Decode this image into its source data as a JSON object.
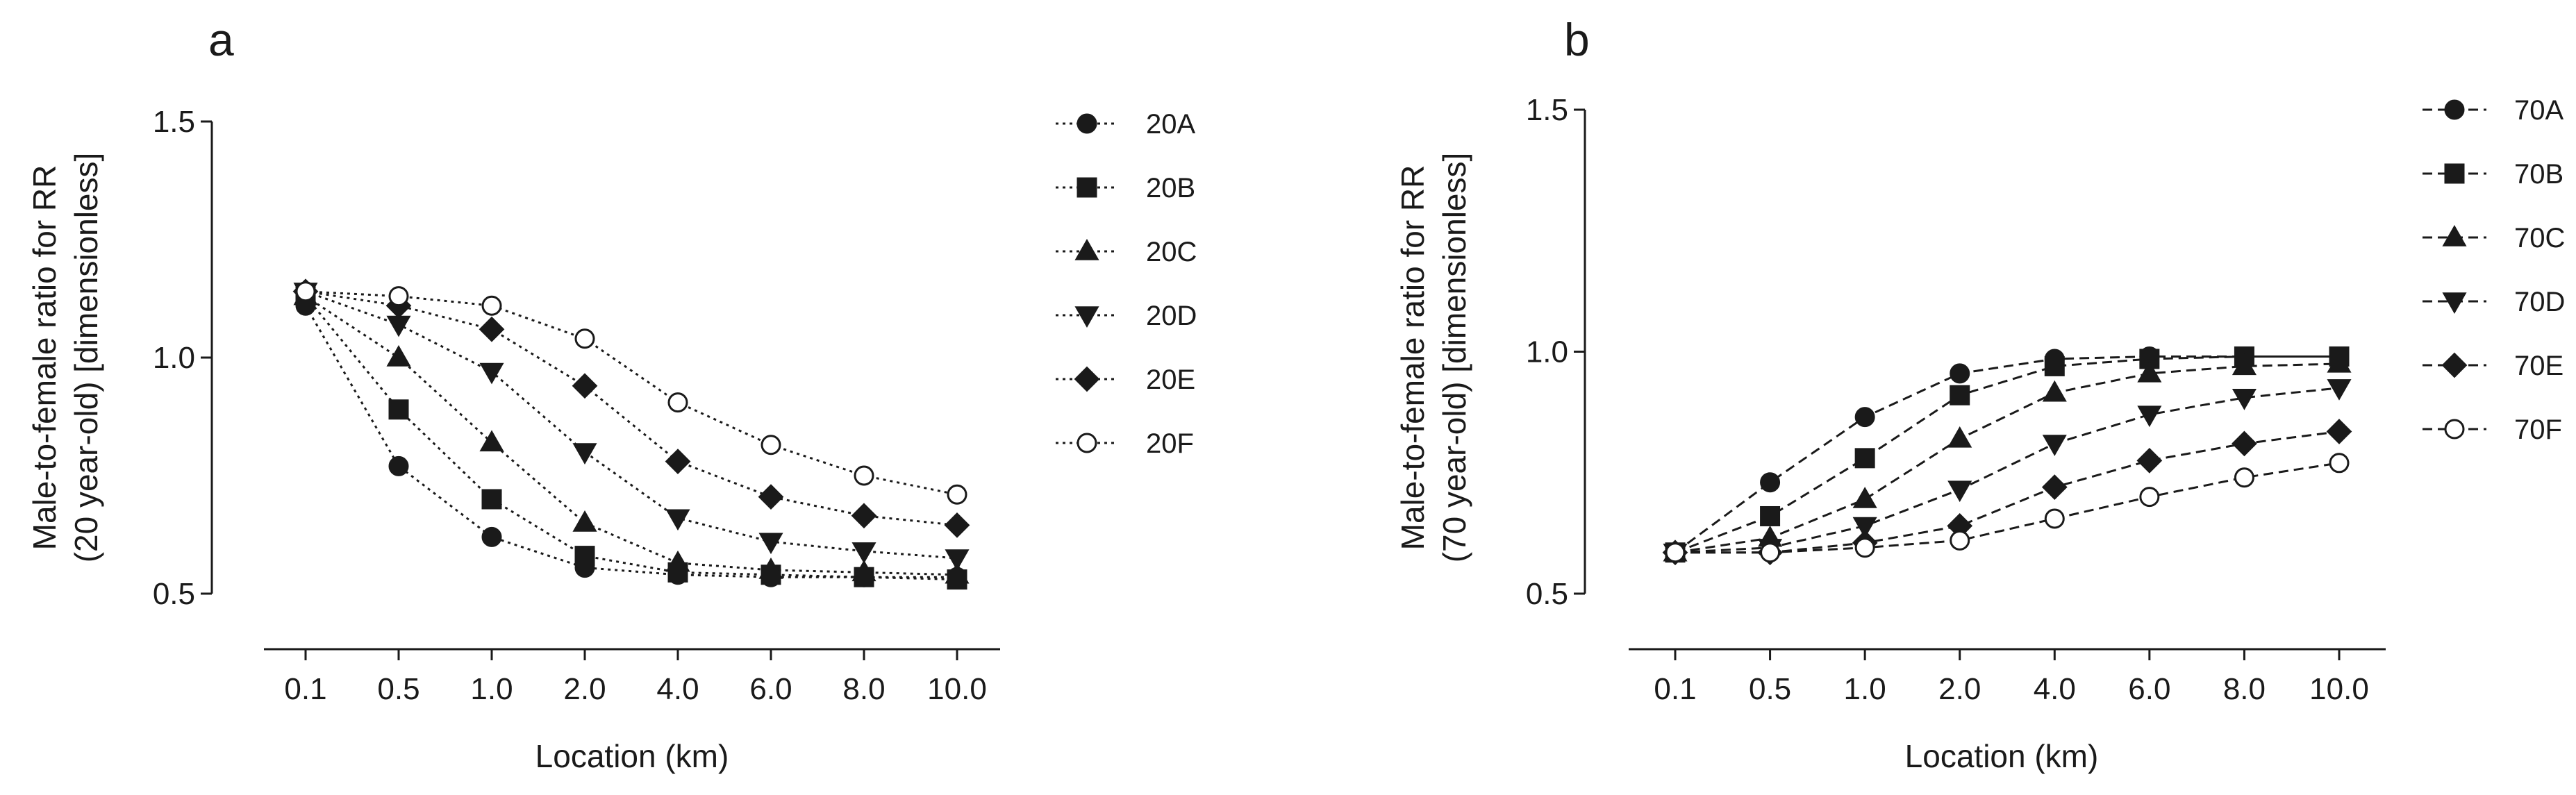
{
  "chart_data": [
    {
      "panel": "a",
      "type": "line",
      "xlabel": "Location (km)",
      "ylabel": [
        "Male-to-female ratio for RR",
        "(20 year-old) [dimensionless]"
      ],
      "categories": [
        "0.1",
        "0.5",
        "1.0",
        "2.0",
        "4.0",
        "6.0",
        "8.0",
        "10.0"
      ],
      "ylim": [
        0.5,
        1.5
      ],
      "yticks": [
        "0.5",
        "1.0",
        "1.5"
      ],
      "line_style": "dotted",
      "legend_position": "right",
      "series": [
        {
          "name": "20A",
          "marker": "circle",
          "values": [
            1.11,
            0.77,
            0.62,
            0.555,
            0.54,
            0.535,
            0.535,
            0.535
          ]
        },
        {
          "name": "20B",
          "marker": "square",
          "values": [
            1.13,
            0.89,
            0.7,
            0.58,
            0.545,
            0.54,
            0.535,
            0.53
          ]
        },
        {
          "name": "20C",
          "marker": "triangle-up",
          "values": [
            1.13,
            1.0,
            0.82,
            0.65,
            0.565,
            0.55,
            0.545,
            0.54
          ]
        },
        {
          "name": "20D",
          "marker": "triangle-down",
          "values": [
            1.14,
            1.07,
            0.97,
            0.8,
            0.66,
            0.61,
            0.59,
            0.575
          ]
        },
        {
          "name": "20E",
          "marker": "diamond",
          "values": [
            1.14,
            1.11,
            1.06,
            0.94,
            0.78,
            0.705,
            0.665,
            0.645
          ]
        },
        {
          "name": "20F",
          "marker": "open-circle",
          "values": [
            1.14,
            1.13,
            1.11,
            1.04,
            0.905,
            0.815,
            0.75,
            0.71
          ]
        }
      ]
    },
    {
      "panel": "b",
      "type": "line",
      "xlabel": "Location (km)",
      "ylabel": [
        "Male-to-female ratio for RR",
        "(70 year-old) [dimensionless]"
      ],
      "categories": [
        "0.1",
        "0.5",
        "1.0",
        "2.0",
        "4.0",
        "6.0",
        "8.0",
        "10.0"
      ],
      "ylim": [
        0.5,
        1.5
      ],
      "yticks": [
        "0.5",
        "1.0",
        "1.5"
      ],
      "line_style": "dashed",
      "legend_position": "right",
      "series": [
        {
          "name": "70A",
          "marker": "circle",
          "values": [
            0.585,
            0.73,
            0.865,
            0.955,
            0.985,
            0.99,
            0.99,
            0.99
          ]
        },
        {
          "name": "70B",
          "marker": "square",
          "values": [
            0.585,
            0.66,
            0.78,
            0.91,
            0.97,
            0.985,
            0.99,
            0.99
          ]
        },
        {
          "name": "70C",
          "marker": "triangle-up",
          "values": [
            0.585,
            0.615,
            0.695,
            0.82,
            0.915,
            0.955,
            0.97,
            0.975
          ]
        },
        {
          "name": "70D",
          "marker": "triangle-down",
          "values": [
            0.585,
            0.595,
            0.64,
            0.715,
            0.81,
            0.87,
            0.905,
            0.925
          ]
        },
        {
          "name": "70E",
          "marker": "diamond",
          "values": [
            0.585,
            0.585,
            0.605,
            0.64,
            0.72,
            0.775,
            0.81,
            0.835
          ]
        },
        {
          "name": "70F",
          "marker": "open-circle",
          "values": [
            0.585,
            0.585,
            0.595,
            0.61,
            0.655,
            0.7,
            0.74,
            0.77
          ]
        }
      ]
    }
  ]
}
